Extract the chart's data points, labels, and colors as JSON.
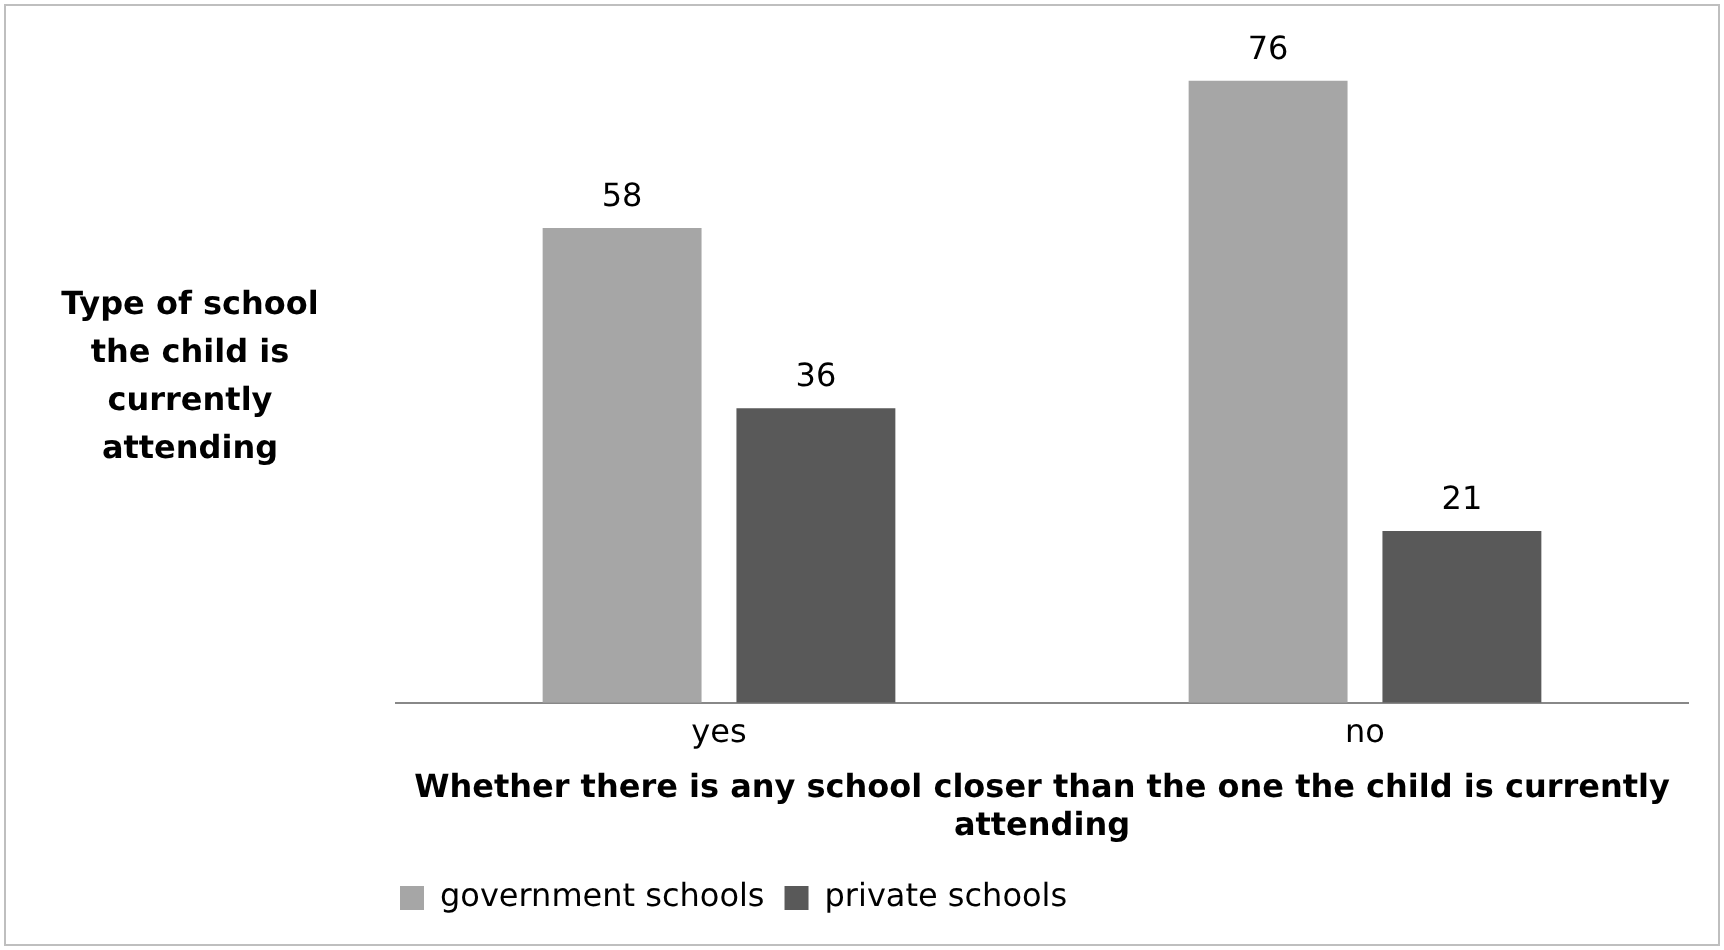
{
  "chart_data": {
    "type": "bar",
    "xlabel": "Whether there is any school closer than the one the child is currently attending",
    "ylabel": "Type of school the child is currently attending",
    "categories": [
      "yes",
      "no"
    ],
    "series": [
      {
        "name": "government schools",
        "color": "#a6a6a6",
        "values": [
          58,
          76
        ]
      },
      {
        "name": "private schools",
        "color": "#595959",
        "values": [
          36,
          21
        ]
      }
    ],
    "tick_labels": "x",
    "data_labels": true,
    "grid": false,
    "legend": "bottom left"
  }
}
